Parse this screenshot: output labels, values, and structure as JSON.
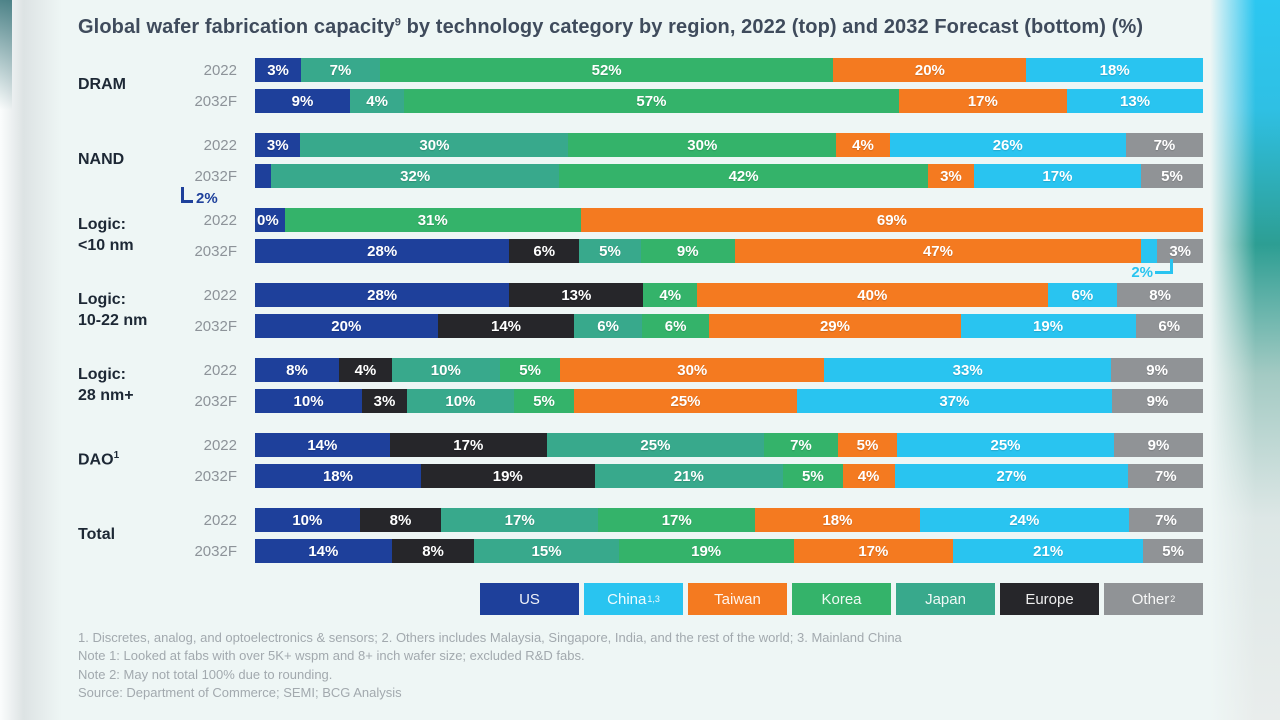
{
  "title": {
    "pre": "Global wafer fabrication capacity",
    "sup": "9",
    "post": " by technology category by region, 2022 (top) and 2032 Forecast (bottom) (%)"
  },
  "chart_data": {
    "type": "bar",
    "orientation": "horizontal-stacked",
    "unit": "%",
    "stack_order": [
      "US",
      "Europe",
      "Japan",
      "Korea",
      "Taiwan",
      "China",
      "Other"
    ],
    "colors": {
      "US": "#1e409b",
      "China": "#29c4f0",
      "Taiwan": "#f47a20",
      "Korea": "#34b36a",
      "Japan": "#38a98c",
      "Europe": "#26262a",
      "Other": "#909396"
    },
    "legend": [
      {
        "region": "US",
        "label": "US",
        "sup": ""
      },
      {
        "region": "China",
        "label": "China",
        "sup": "1,3"
      },
      {
        "region": "Taiwan",
        "label": "Taiwan",
        "sup": ""
      },
      {
        "region": "Korea",
        "label": "Korea",
        "sup": ""
      },
      {
        "region": "Japan",
        "label": "Japan",
        "sup": ""
      },
      {
        "region": "Europe",
        "label": "Europe",
        "sup": ""
      },
      {
        "region": "Other",
        "label": "Other",
        "sup": "2"
      }
    ],
    "groups": [
      {
        "label_lines": [
          "DRAM"
        ],
        "sup": "",
        "rows": [
          {
            "year": "2022",
            "segments": [
              {
                "r": "US",
                "v": 3
              },
              {
                "r": "Japan",
                "v": 7
              },
              {
                "r": "Korea",
                "v": 52
              },
              {
                "r": "Taiwan",
                "v": 20
              },
              {
                "r": "China",
                "v": 18
              }
            ]
          },
          {
            "year": "2032F",
            "segments": [
              {
                "r": "US",
                "v": 9
              },
              {
                "r": "Japan",
                "v": 4
              },
              {
                "r": "Korea",
                "v": 57
              },
              {
                "r": "Taiwan",
                "v": 17
              },
              {
                "r": "China",
                "v": 13
              }
            ]
          }
        ]
      },
      {
        "label_lines": [
          "NAND"
        ],
        "sup": "",
        "callout": {
          "text": "2%",
          "side": "left"
        },
        "rows": [
          {
            "year": "2022",
            "segments": [
              {
                "r": "US",
                "v": 3
              },
              {
                "r": "Japan",
                "v": 30
              },
              {
                "r": "Korea",
                "v": 30
              },
              {
                "r": "Taiwan",
                "v": 4
              },
              {
                "r": "China",
                "v": 26
              },
              {
                "r": "Other",
                "v": 7
              }
            ]
          },
          {
            "year": "2032F",
            "segments": [
              {
                "r": "US",
                "v": 2,
                "hide": true
              },
              {
                "r": "Japan",
                "v": 32
              },
              {
                "r": "Korea",
                "v": 42
              },
              {
                "r": "Taiwan",
                "v": 3
              },
              {
                "r": "China",
                "v": 17
              },
              {
                "r": "Other",
                "v": 5
              }
            ]
          }
        ]
      },
      {
        "label_lines": [
          "Logic:",
          "<10 nm"
        ],
        "sup": "",
        "callout": {
          "text": "2%",
          "side": "right"
        },
        "rows": [
          {
            "year": "2022",
            "segments": [
              {
                "r": "US",
                "v": 0,
                "w": 0.7
              },
              {
                "r": "Korea",
                "v": 31
              },
              {
                "r": "Taiwan",
                "v": 69
              }
            ]
          },
          {
            "year": "2032F",
            "segments": [
              {
                "r": "US",
                "v": 28
              },
              {
                "r": "Europe",
                "v": 6
              },
              {
                "r": "Japan",
                "v": 5
              },
              {
                "r": "Korea",
                "v": 9
              },
              {
                "r": "Taiwan",
                "v": 47
              },
              {
                "r": "China",
                "v": 2,
                "hide": true
              },
              {
                "r": "Other",
                "v": 3
              }
            ]
          }
        ]
      },
      {
        "label_lines": [
          "Logic:",
          "10-22 nm"
        ],
        "sup": "",
        "rows": [
          {
            "year": "2022",
            "segments": [
              {
                "r": "US",
                "v": 28
              },
              {
                "r": "Europe",
                "v": 13
              },
              {
                "r": "Korea",
                "v": 4
              },
              {
                "r": "Taiwan",
                "v": 40
              },
              {
                "r": "China",
                "v": 6
              },
              {
                "r": "Other",
                "v": 8
              }
            ]
          },
          {
            "year": "2032F",
            "segments": [
              {
                "r": "US",
                "v": 20
              },
              {
                "r": "Europe",
                "v": 14
              },
              {
                "r": "Japan",
                "v": 6
              },
              {
                "r": "Korea",
                "v": 6
              },
              {
                "r": "Taiwan",
                "v": 29
              },
              {
                "r": "China",
                "v": 19
              },
              {
                "r": "Other",
                "v": 6
              }
            ]
          }
        ]
      },
      {
        "label_lines": [
          "Logic:",
          "28 nm+"
        ],
        "sup": "",
        "rows": [
          {
            "year": "2022",
            "segments": [
              {
                "r": "US",
                "v": 8
              },
              {
                "r": "Europe",
                "v": 4
              },
              {
                "r": "Japan",
                "v": 10
              },
              {
                "r": "Korea",
                "v": 5
              },
              {
                "r": "Taiwan",
                "v": 30
              },
              {
                "r": "China",
                "v": 33
              },
              {
                "r": "Other",
                "v": 9
              }
            ]
          },
          {
            "year": "2032F",
            "segments": [
              {
                "r": "US",
                "v": 10
              },
              {
                "r": "Europe",
                "v": 3
              },
              {
                "r": "Japan",
                "v": 10
              },
              {
                "r": "Korea",
                "v": 5
              },
              {
                "r": "Taiwan",
                "v": 25
              },
              {
                "r": "China",
                "v": 37
              },
              {
                "r": "Other",
                "v": 9
              }
            ]
          }
        ]
      },
      {
        "label_lines": [
          "DAO"
        ],
        "sup": "1",
        "rows": [
          {
            "year": "2022",
            "segments": [
              {
                "r": "US",
                "v": 14
              },
              {
                "r": "Europe",
                "v": 17
              },
              {
                "r": "Japan",
                "v": 25
              },
              {
                "r": "Korea",
                "v": 7
              },
              {
                "r": "Taiwan",
                "v": 5
              },
              {
                "r": "China",
                "v": 25
              },
              {
                "r": "Other",
                "v": 9
              }
            ]
          },
          {
            "year": "2032F",
            "segments": [
              {
                "r": "US",
                "v": 18
              },
              {
                "r": "Europe",
                "v": 19
              },
              {
                "r": "Japan",
                "v": 21
              },
              {
                "r": "Korea",
                "v": 5
              },
              {
                "r": "Taiwan",
                "v": 4
              },
              {
                "r": "China",
                "v": 27
              },
              {
                "r": "Other",
                "v": 7
              }
            ]
          }
        ]
      },
      {
        "label_lines": [
          "Total"
        ],
        "sup": "",
        "rows": [
          {
            "year": "2022",
            "segments": [
              {
                "r": "US",
                "v": 10
              },
              {
                "r": "Europe",
                "v": 8
              },
              {
                "r": "Japan",
                "v": 17
              },
              {
                "r": "Korea",
                "v": 17
              },
              {
                "r": "Taiwan",
                "v": 18
              },
              {
                "r": "China",
                "v": 24
              },
              {
                "r": "Other",
                "v": 7
              }
            ]
          },
          {
            "year": "2032F",
            "segments": [
              {
                "r": "US",
                "v": 14
              },
              {
                "r": "Europe",
                "v": 8
              },
              {
                "r": "Japan",
                "v": 15
              },
              {
                "r": "Korea",
                "v": 19
              },
              {
                "r": "Taiwan",
                "v": 17
              },
              {
                "r": "China",
                "v": 21
              },
              {
                "r": "Other",
                "v": 5
              }
            ]
          }
        ]
      }
    ]
  },
  "footnotes": [
    "1. Discretes, analog, and optoelectronics & sensors; 2. Others includes Malaysia, Singapore, India, and the rest of the world; 3. Mainland China",
    "Note 1: Looked at fabs with over 5K+ wspm and 8+ inch wafer size; excluded R&D fabs.",
    "Note 2: May not total 100% due to rounding.",
    "Source: Department of Commerce; SEMI; BCG Analysis"
  ]
}
